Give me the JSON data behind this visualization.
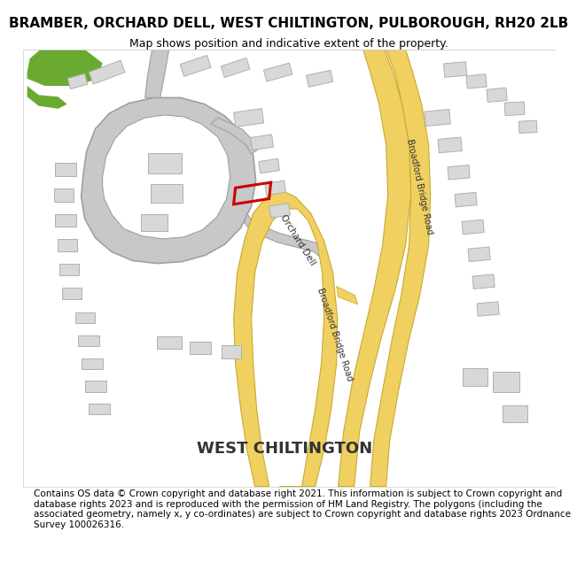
{
  "title": "BRAMBER, ORCHARD DELL, WEST CHILTINGTON, PULBOROUGH, RH20 2LB",
  "subtitle": "Map shows position and indicative extent of the property.",
  "footer": "Contains OS data © Crown copyright and database right 2021. This information is subject to Crown copyright and database rights 2023 and is reproduced with the permission of HM Land Registry. The polygons (including the associated geometry, namely x, y co-ordinates) are subject to Crown copyright and database rights 2023 Ordnance Survey 100026316.",
  "west_chiltington_label": "WEST CHILTINGTON",
  "orchard_dell_label": "Orchard Dell",
  "broadford_bridge_road_label1": "Broadford Bridge Road",
  "broadford_bridge_road_label2": "Broadford Bridge Road",
  "road_color": "#f0d060",
  "road_edge": "#c8aa30",
  "building_fill": "#d8d8d8",
  "building_edge": "#b0b0b0",
  "green_color": "#6aaa30",
  "highlight_color": "#cc0000",
  "title_fontsize": 11,
  "subtitle_fontsize": 9,
  "footer_fontsize": 7.5
}
